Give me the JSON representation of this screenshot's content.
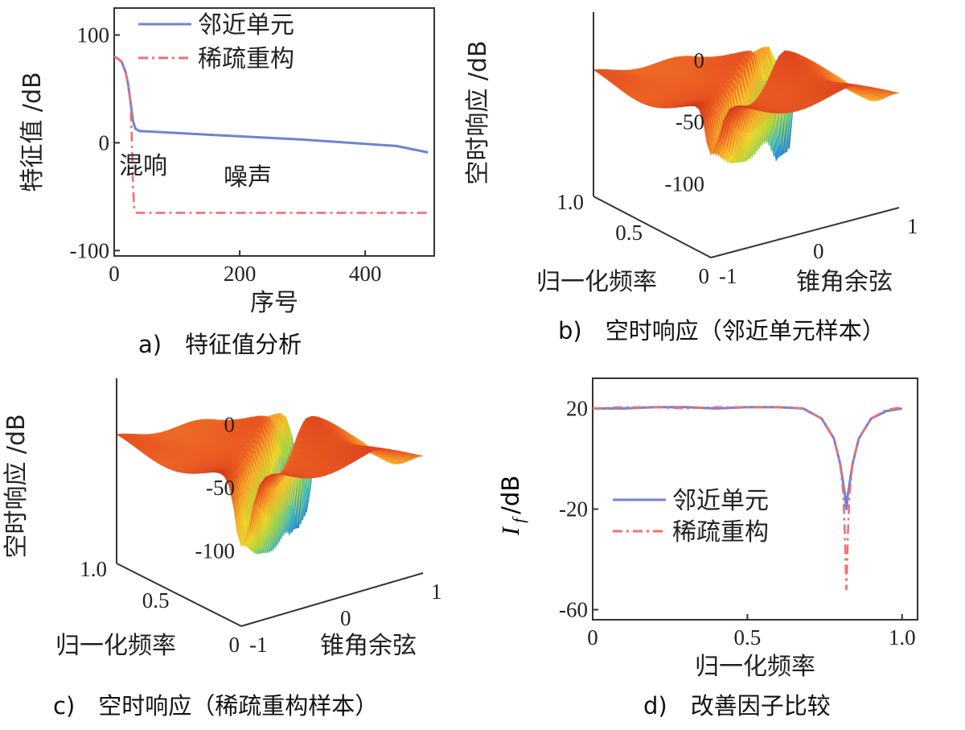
{
  "chart_data": [
    {
      "type": "line",
      "caption": "a)　特征值分析",
      "xlabel": "序号",
      "ylabel": "特征值 /dB",
      "xlim": [
        0,
        510
      ],
      "ylim": [
        -105,
        125
      ],
      "xticks": [
        0,
        200,
        400
      ],
      "yticks": [
        100,
        0,
        -100
      ],
      "legend_position": "top-right",
      "annotations": [
        {
          "text": "混响",
          "x": 38,
          "y": -28
        },
        {
          "text": "噪声",
          "x": 250,
          "y": -45
        }
      ],
      "series": [
        {
          "name": "邻近单元",
          "color": "#6f82d6",
          "style": "solid",
          "points": [
            [
              0,
              80
            ],
            [
              6,
              78
            ],
            [
              12,
              75
            ],
            [
              18,
              66
            ],
            [
              22,
              55
            ],
            [
              26,
              38
            ],
            [
              30,
              20
            ],
            [
              34,
              13
            ],
            [
              40,
              11
            ],
            [
              100,
              9
            ],
            [
              200,
              6
            ],
            [
              300,
              3
            ],
            [
              400,
              -1
            ],
            [
              450,
              -3
            ],
            [
              500,
              -9
            ]
          ]
        },
        {
          "name": "稀疏重构",
          "color": "#f07070",
          "style": "dashdot",
          "points": [
            [
              0,
              80
            ],
            [
              6,
              78
            ],
            [
              12,
              75
            ],
            [
              18,
              66
            ],
            [
              22,
              55
            ],
            [
              26,
              38
            ],
            [
              28,
              5
            ],
            [
              30,
              -40
            ],
            [
              32,
              -62
            ],
            [
              36,
              -65
            ],
            [
              100,
              -65
            ],
            [
              200,
              -65
            ],
            [
              300,
              -65
            ],
            [
              400,
              -65
            ],
            [
              500,
              -65
            ]
          ]
        }
      ]
    },
    {
      "type": "surface",
      "caption": "b)　空时响应（邻近单元样本）",
      "xlabel": "锥角余弦",
      "ylabel": "归一化频率",
      "zlabel": "空时响应 /dB",
      "xticks": [
        "-1",
        "0",
        "1"
      ],
      "yticks": [
        "0",
        "0.5",
        "1.0"
      ],
      "zticks": [
        "0",
        "-50",
        "-100"
      ],
      "zlim": [
        -110,
        20
      ],
      "colormap": [
        "#1b4fb0",
        "#2f8fd6",
        "#4cc1b8",
        "#a8d640",
        "#f2d52a",
        "#f5a02a",
        "#ea5a22",
        "#d43a1c",
        "#7a1414"
      ]
    },
    {
      "type": "surface",
      "caption": "c)　空时响应（稀疏重构样本）",
      "xlabel": "锥角余弦",
      "ylabel": "归一化频率",
      "zlabel": "空时响应 /dB",
      "xticks": [
        "-1",
        "0",
        "1"
      ],
      "yticks": [
        "0",
        "0.5",
        "1.0"
      ],
      "zticks": [
        "0",
        "-50",
        "-100"
      ],
      "zlim": [
        -110,
        20
      ],
      "colormap": [
        "#1b4fb0",
        "#2f8fd6",
        "#4cc1b8",
        "#a8d640",
        "#f2d52a",
        "#f5a02a",
        "#ea5a22",
        "#d43a1c",
        "#7a1414"
      ]
    },
    {
      "type": "line",
      "caption": "d)　改善因子比较",
      "xlabel": "归一化频率",
      "ylabel": "I_f /dB",
      "ylabel_main": "I",
      "ylabel_sub": "f",
      "ylabel_unit": "/dB",
      "xlim": [
        0,
        1.05
      ],
      "ylim": [
        -64,
        32
      ],
      "xticks": [
        0,
        0.5,
        1.0
      ],
      "xticklabels": [
        "0",
        "0.5",
        "1.0"
      ],
      "yticks": [
        20,
        -20,
        -60
      ],
      "legend_position": "center-left",
      "series": [
        {
          "name": "邻近单元",
          "color": "#6f82d6",
          "style": "solid",
          "points": [
            [
              0,
              20
            ],
            [
              0.1,
              20
            ],
            [
              0.2,
              20.5
            ],
            [
              0.3,
              20.5
            ],
            [
              0.4,
              20
            ],
            [
              0.5,
              20.5
            ],
            [
              0.6,
              20.5
            ],
            [
              0.68,
              20
            ],
            [
              0.74,
              16
            ],
            [
              0.78,
              8
            ],
            [
              0.8,
              -2
            ],
            [
              0.815,
              -14
            ],
            [
              0.82,
              -20
            ],
            [
              0.825,
              -14
            ],
            [
              0.84,
              -2
            ],
            [
              0.86,
              8
            ],
            [
              0.9,
              16
            ],
            [
              0.95,
              19
            ],
            [
              1.0,
              20
            ]
          ]
        },
        {
          "name": "稀疏重构",
          "color": "#f07070",
          "style": "dashdot",
          "points": [
            [
              0,
              20
            ],
            [
              0.1,
              20.5
            ],
            [
              0.2,
              20.5
            ],
            [
              0.3,
              20
            ],
            [
              0.4,
              20.5
            ],
            [
              0.5,
              20.5
            ],
            [
              0.6,
              20.5
            ],
            [
              0.68,
              20
            ],
            [
              0.74,
              16
            ],
            [
              0.78,
              8
            ],
            [
              0.8,
              -2
            ],
            [
              0.81,
              -14
            ],
            [
              0.815,
              -30
            ],
            [
              0.82,
              -52
            ],
            [
              0.825,
              -30
            ],
            [
              0.83,
              -14
            ],
            [
              0.84,
              -2
            ],
            [
              0.86,
              8
            ],
            [
              0.9,
              16
            ],
            [
              0.95,
              19.5
            ],
            [
              1.0,
              20.5
            ]
          ]
        }
      ]
    }
  ]
}
